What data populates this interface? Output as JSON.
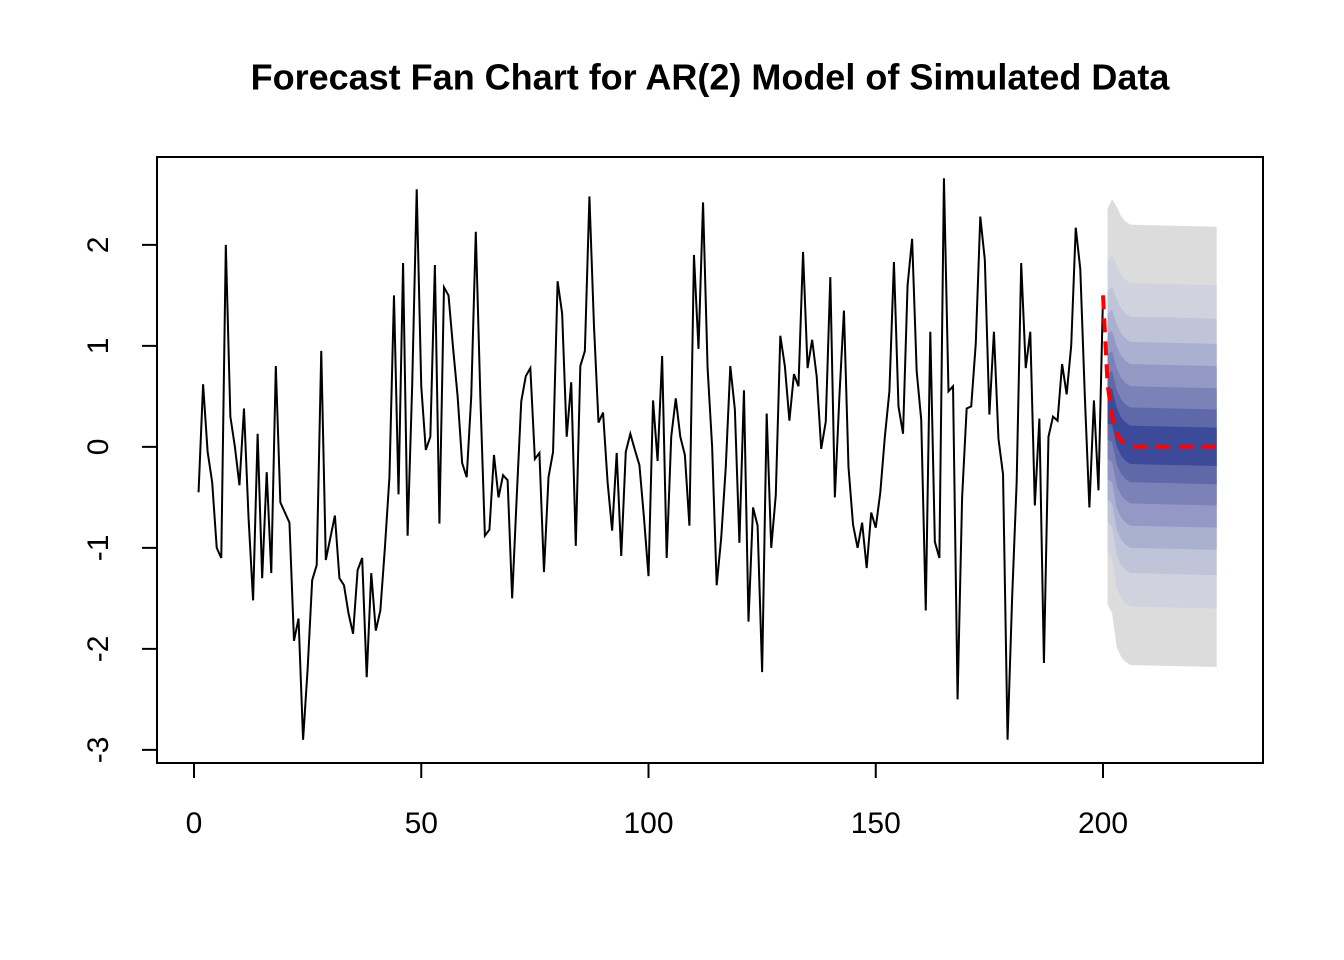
{
  "chart_data": {
    "type": "fan",
    "title": "Forecast Fan Chart for AR(2) Model of Simulated Data",
    "xlim": [
      -8.14,
      235.2
    ],
    "ylim": [
      -3.13,
      2.87
    ],
    "xticks": [
      0,
      50,
      100,
      150,
      200
    ],
    "yticks": [
      -3,
      -2,
      -1,
      0,
      1,
      2
    ],
    "series": [
      {
        "color": "#000000",
        "x": [
          1,
          2,
          3,
          4,
          5,
          6,
          7,
          8,
          9,
          10,
          11,
          12,
          13,
          14,
          15,
          16,
          17,
          18,
          19,
          20,
          21,
          22,
          23,
          24,
          25,
          26,
          27,
          28,
          29,
          30,
          31,
          32,
          33,
          34,
          35,
          36,
          37,
          38,
          39,
          40,
          41,
          42,
          43,
          44,
          45,
          46,
          47,
          48,
          49,
          50,
          51,
          52,
          53,
          54,
          55,
          56,
          57,
          58,
          59,
          60,
          61,
          62,
          63,
          64,
          65,
          66,
          67,
          68,
          69,
          70,
          71,
          72,
          73,
          74,
          75,
          76,
          77,
          78,
          79,
          80,
          81,
          82,
          83,
          84,
          85,
          86,
          87,
          88,
          89,
          90,
          91,
          92,
          93,
          94,
          95,
          96,
          97,
          98,
          99,
          100,
          101,
          102,
          103,
          104,
          105,
          106,
          107,
          108,
          109,
          110,
          111,
          112,
          113,
          114,
          115,
          116,
          117,
          118,
          119,
          120,
          121,
          122,
          123,
          124,
          125,
          126,
          127,
          128,
          129,
          130,
          131,
          132,
          133,
          134,
          135,
          136,
          137,
          138,
          139,
          140,
          141,
          142,
          143,
          144,
          145,
          146,
          147,
          148,
          149,
          150,
          151,
          152,
          153,
          154,
          155,
          156,
          157,
          158,
          159,
          160,
          161,
          162,
          163,
          164,
          165,
          166,
          167,
          168,
          169,
          170,
          171,
          172,
          173,
          174,
          175,
          176,
          177,
          178,
          179,
          180,
          181,
          182,
          183,
          184,
          185,
          186,
          187,
          188,
          189,
          190,
          191,
          192,
          193,
          194,
          195,
          196,
          197,
          198,
          199,
          200
        ],
        "values": [
          -0.45,
          0.62,
          -0.05,
          -0.35,
          -1.0,
          -1.1,
          2.0,
          0.3,
          0.0,
          -0.38,
          0.38,
          -0.7,
          -1.52,
          0.13,
          -1.3,
          -0.25,
          -1.25,
          0.8,
          -0.55,
          -0.65,
          -0.75,
          -1.92,
          -1.7,
          -2.9,
          -2.2,
          -1.32,
          -1.17,
          0.95,
          -1.12,
          -0.9,
          -0.68,
          -1.3,
          -1.37,
          -1.65,
          -1.85,
          -1.22,
          -1.1,
          -2.28,
          -1.25,
          -1.82,
          -1.62,
          -1.0,
          -0.3,
          1.5,
          -0.47,
          1.82,
          -0.88,
          0.6,
          2.55,
          0.6,
          -0.03,
          0.1,
          1.8,
          -0.76,
          1.58,
          1.5,
          0.98,
          0.5,
          -0.16,
          -0.3,
          0.5,
          2.13,
          0.5,
          -0.88,
          -0.82,
          -0.08,
          -0.5,
          -0.28,
          -0.33,
          -1.5,
          -0.5,
          0.45,
          0.7,
          0.78,
          -0.12,
          -0.06,
          -1.24,
          -0.3,
          -0.05,
          1.64,
          1.32,
          0.1,
          0.64,
          -0.98,
          0.8,
          0.95,
          2.48,
          1.2,
          0.24,
          0.34,
          -0.35,
          -0.83,
          -0.06,
          -1.08,
          -0.05,
          0.13,
          -0.03,
          -0.18,
          -0.7,
          -1.28,
          0.46,
          -0.14,
          0.9,
          -1.1,
          0.1,
          0.48,
          0.1,
          -0.08,
          -0.78,
          1.9,
          0.97,
          2.42,
          0.78,
          0.0,
          -1.37,
          -0.9,
          -0.2,
          0.8,
          0.37,
          -0.95,
          0.56,
          -1.73,
          -0.6,
          -0.78,
          -2.23,
          0.33,
          -1.0,
          -0.48,
          1.1,
          0.8,
          0.26,
          0.72,
          0.6,
          1.93,
          0.78,
          1.06,
          0.7,
          -0.02,
          0.25,
          1.68,
          -0.5,
          0.5,
          1.35,
          -0.2,
          -0.77,
          -1.0,
          -0.75,
          -1.2,
          -0.65,
          -0.8,
          -0.45,
          0.1,
          0.55,
          1.83,
          0.4,
          0.13,
          1.6,
          2.06,
          0.75,
          0.27,
          -1.62,
          1.14,
          -0.94,
          -1.1,
          2.66,
          0.55,
          0.6,
          -2.5,
          -0.5,
          0.38,
          0.4,
          1.02,
          2.28,
          1.85,
          0.32,
          1.14,
          0.08,
          -0.27,
          -2.9,
          -1.5,
          -0.35,
          1.82,
          0.78,
          1.14,
          -0.58,
          0.28,
          -2.14,
          0.1,
          0.3,
          0.26,
          0.82,
          0.52,
          1.0,
          2.17,
          1.76,
          0.5,
          -0.6,
          0.46,
          -0.43,
          1.5
        ]
      }
    ],
    "fan": {
      "x": [
        201,
        202,
        203,
        204,
        205,
        206,
        225
      ],
      "bands": [
        {
          "color": "#dcdcdc",
          "upper": [
            2.36,
            2.45,
            2.38,
            2.28,
            2.23,
            2.2,
            2.18
          ],
          "lower": [
            -1.56,
            -1.65,
            -1.98,
            -2.08,
            -2.13,
            -2.16,
            -2.18
          ]
        },
        {
          "color": "#d0d2de",
          "upper": [
            1.84,
            1.9,
            1.8,
            1.7,
            1.65,
            1.62,
            1.6
          ],
          "lower": [
            -1.04,
            -1.1,
            -1.4,
            -1.5,
            -1.55,
            -1.58,
            -1.6
          ]
        },
        {
          "color": "#c0c4d8",
          "upper": [
            1.54,
            1.59,
            1.47,
            1.37,
            1.32,
            1.29,
            1.27
          ],
          "lower": [
            -0.74,
            -0.79,
            -1.07,
            -1.17,
            -1.22,
            -1.25,
            -1.27
          ]
        },
        {
          "color": "#aab0cf",
          "upper": [
            1.32,
            1.36,
            1.22,
            1.12,
            1.07,
            1.04,
            1.02
          ],
          "lower": [
            -0.52,
            -0.56,
            -0.82,
            -0.92,
            -0.97,
            -1.0,
            -1.02
          ]
        },
        {
          "color": "#9399c4",
          "upper": [
            1.12,
            1.15,
            1.0,
            0.9,
            0.85,
            0.82,
            0.8
          ],
          "lower": [
            -0.32,
            -0.35,
            -0.6,
            -0.7,
            -0.75,
            -0.78,
            -0.8
          ]
        },
        {
          "color": "#7a82b7",
          "upper": [
            0.92,
            0.95,
            0.78,
            0.68,
            0.63,
            0.6,
            0.58
          ],
          "lower": [
            -0.12,
            -0.15,
            -0.38,
            -0.48,
            -0.53,
            -0.56,
            -0.58
          ]
        },
        {
          "color": "#5f68a8",
          "upper": [
            0.73,
            0.75,
            0.57,
            0.47,
            0.42,
            0.39,
            0.37
          ],
          "lower": [
            0.07,
            0.05,
            -0.17,
            -0.27,
            -0.32,
            -0.35,
            -0.37
          ]
        },
        {
          "color": "#3d4a9a",
          "upper": [
            0.57,
            0.58,
            0.39,
            0.29,
            0.24,
            0.21,
            0.19
          ],
          "lower": [
            0.23,
            0.22,
            0.01,
            -0.09,
            -0.14,
            -0.17,
            -0.19
          ]
        }
      ]
    },
    "forecast": {
      "color": "#ff0000",
      "x": [
        200,
        201,
        202,
        203,
        204,
        205,
        206,
        207,
        225
      ],
      "values": [
        1.5,
        0.62,
        0.3,
        0.13,
        0.06,
        0.03,
        0.01,
        0.0,
        0.0
      ]
    }
  }
}
